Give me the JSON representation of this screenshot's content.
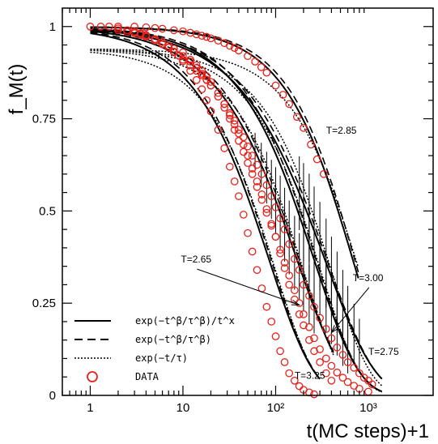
{
  "chart_data": {
    "type": "line",
    "x_scale": "log",
    "xlim": [
      0.5,
      5000
    ],
    "ylim": [
      0,
      1.05
    ],
    "ylabel": "f_M(t)",
    "xlabel": "t(MC steps)+1",
    "x_ticks": [
      {
        "v": 1,
        "label": "1"
      },
      {
        "v": 10,
        "label": "10"
      },
      {
        "v": 100,
        "label": "10²"
      },
      {
        "v": 1000,
        "label": "10³"
      }
    ],
    "y_ticks": [
      {
        "v": 0,
        "label": "0"
      },
      {
        "v": 0.25,
        "label": "0.25"
      },
      {
        "v": 0.5,
        "label": "0.5"
      },
      {
        "v": 0.75,
        "label": "0.75"
      },
      {
        "v": 1,
        "label": "1"
      }
    ],
    "legend": [
      {
        "style": "solid",
        "label": "exp(−t^β/τ^β)/t^x"
      },
      {
        "style": "dashed",
        "label": "exp(−t^β/τ^β)"
      },
      {
        "style": "dotted",
        "label": "exp(−t/τ)"
      },
      {
        "style": "circle",
        "label": "DATA"
      }
    ],
    "annotations": [
      {
        "text": "T=2.85",
        "x": 350,
        "y": 0.71,
        "arrow": null
      },
      {
        "text": "T=2.65",
        "x": 9.5,
        "y": 0.36,
        "arrow": {
          "x": 180,
          "y": 0.245
        }
      },
      {
        "text": "T=3.00",
        "x": 680,
        "y": 0.31,
        "arrow": {
          "x": 400,
          "y": 0.17
        }
      },
      {
        "text": "T=2.75",
        "x": 1000,
        "y": 0.11,
        "arrow": null
      },
      {
        "text": "T=3.25",
        "x": 160,
        "y": 0.045,
        "arrow": null
      }
    ],
    "series": [
      {
        "label": "T=3.25",
        "tau": 85,
        "beta": 0.9,
        "xmax": 300,
        "data_x": [
          1,
          1.3,
          1.6,
          2,
          2.5,
          3,
          3.5,
          4,
          5,
          6,
          7,
          8,
          9,
          10,
          12,
          14,
          16,
          18,
          20,
          24,
          28,
          32,
          36,
          40,
          45,
          50,
          56,
          63,
          71,
          80,
          90,
          100,
          112,
          125,
          140,
          160,
          180,
          200,
          230,
          260
        ],
        "data_y": [
          1.0,
          1.0,
          1.0,
          0.995,
          0.99,
          0.986,
          0.982,
          0.977,
          0.965,
          0.953,
          0.943,
          0.93,
          0.921,
          0.906,
          0.88,
          0.855,
          0.83,
          0.8,
          0.77,
          0.72,
          0.67,
          0.62,
          0.58,
          0.54,
          0.49,
          0.44,
          0.39,
          0.34,
          0.29,
          0.24,
          0.2,
          0.16,
          0.12,
          0.09,
          0.06,
          0.04,
          0.025,
          0.015,
          0.008,
          0.003
        ]
      },
      {
        "label": "T=3.00",
        "tau": 170,
        "beta": 0.85,
        "xmax": 420,
        "data_x": [
          10,
          12,
          14,
          16,
          18,
          20,
          24,
          28,
          32,
          36,
          40,
          45,
          50,
          56,
          63,
          71,
          80,
          90,
          100,
          112,
          125,
          140,
          160,
          180,
          200,
          230,
          260,
          300,
          350,
          400
        ],
        "data_y": [
          0.93,
          0.91,
          0.895,
          0.88,
          0.865,
          0.85,
          0.82,
          0.79,
          0.76,
          0.735,
          0.71,
          0.68,
          0.65,
          0.615,
          0.58,
          0.545,
          0.505,
          0.465,
          0.43,
          0.385,
          0.345,
          0.3,
          0.26,
          0.22,
          0.19,
          0.15,
          0.12,
          0.09,
          0.06,
          0.04
        ],
        "error_x": [
          60,
          70,
          80,
          90,
          100,
          112,
          125,
          140,
          160,
          180,
          200,
          230,
          260
        ],
        "error_h": [
          0.05,
          0.06,
          0.07,
          0.08,
          0.09,
          0.1,
          0.1,
          0.1,
          0.1,
          0.09,
          0.09,
          0.08,
          0.07
        ]
      },
      {
        "label": "T=2.75",
        "tau": 340,
        "beta": 0.8,
        "xmax": 1400,
        "data_x": [
          2,
          2.5,
          3,
          3.5,
          4,
          5,
          6,
          7,
          8,
          10,
          12,
          14,
          16,
          18,
          20,
          24,
          28,
          32,
          36,
          40,
          45,
          50,
          56,
          63,
          71,
          80,
          90,
          100,
          112,
          125,
          140,
          160,
          180,
          200,
          230,
          260,
          300,
          350,
          400,
          460,
          530,
          600,
          700,
          800,
          900,
          1000,
          1100
        ],
        "data_y": [
          0.99,
          0.985,
          0.982,
          0.978,
          0.972,
          0.962,
          0.952,
          0.943,
          0.932,
          0.91,
          0.895,
          0.88,
          0.868,
          0.855,
          0.84,
          0.81,
          0.79,
          0.765,
          0.745,
          0.72,
          0.7,
          0.675,
          0.65,
          0.625,
          0.6,
          0.57,
          0.54,
          0.51,
          0.48,
          0.45,
          0.41,
          0.37,
          0.34,
          0.3,
          0.27,
          0.24,
          0.21,
          0.18,
          0.155,
          0.13,
          0.11,
          0.09,
          0.075,
          0.06,
          0.048,
          0.04,
          0.03
        ],
        "error_x": [
          180,
          200,
          230,
          260,
          300,
          350,
          400,
          460,
          530,
          600,
          700,
          800
        ],
        "error_h": [
          0.1,
          0.11,
          0.12,
          0.12,
          0.12,
          0.12,
          0.11,
          0.11,
          0.1,
          0.09,
          0.08,
          0.07
        ]
      },
      {
        "label": "T=2.65",
        "tau": 260,
        "beta": 0.9,
        "xmax": 1400,
        "data_x": [
          3,
          3.5,
          4,
          5,
          6,
          7,
          8,
          10,
          12,
          14,
          16,
          18,
          20,
          24,
          28,
          32,
          36,
          40,
          45,
          50,
          56,
          63,
          71,
          80,
          90,
          100,
          112,
          125,
          140,
          160,
          180,
          200,
          230,
          260,
          300,
          350,
          400,
          460,
          530,
          600,
          700,
          800,
          1000
        ],
        "data_y": [
          0.985,
          0.98,
          0.975,
          0.966,
          0.958,
          0.948,
          0.94,
          0.92,
          0.905,
          0.888,
          0.872,
          0.856,
          0.84,
          0.81,
          0.78,
          0.75,
          0.72,
          0.69,
          0.66,
          0.63,
          0.6,
          0.565,
          0.53,
          0.495,
          0.46,
          0.43,
          0.395,
          0.36,
          0.325,
          0.285,
          0.25,
          0.22,
          0.185,
          0.155,
          0.125,
          0.1,
          0.08,
          0.062,
          0.048,
          0.036,
          0.026,
          0.018,
          0.01
        ],
        "error_x": [
          200,
          230,
          260,
          300,
          350,
          400,
          460,
          530,
          600
        ],
        "error_h": [
          0.09,
          0.1,
          0.1,
          0.1,
          0.1,
          0.09,
          0.08,
          0.07,
          0.06
        ]
      },
      {
        "label": "T=2.85",
        "tau": 680,
        "beta": 1.0,
        "xmax": 780,
        "data_x": [
          2,
          3,
          4,
          5,
          6,
          8,
          10,
          12,
          14,
          16,
          18,
          20,
          24,
          28,
          32,
          36,
          40,
          50,
          60,
          70,
          80,
          100,
          120,
          140,
          170,
          200,
          240,
          280,
          330
        ],
        "data_y": [
          1.0,
          1.0,
          0.998,
          0.996,
          0.994,
          0.99,
          0.987,
          0.983,
          0.979,
          0.975,
          0.972,
          0.968,
          0.962,
          0.955,
          0.948,
          0.942,
          0.935,
          0.92,
          0.905,
          0.89,
          0.875,
          0.84,
          0.815,
          0.79,
          0.755,
          0.725,
          0.68,
          0.64,
          0.6
        ]
      }
    ]
  }
}
